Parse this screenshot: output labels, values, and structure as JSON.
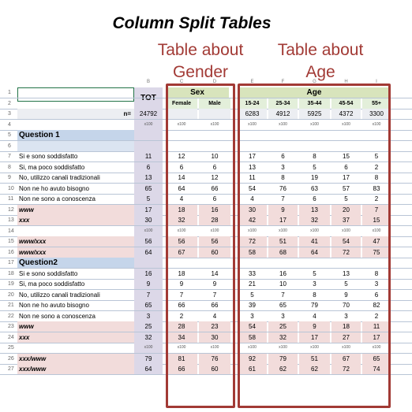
{
  "title": "Column Split Tables",
  "annotations": {
    "gender": "Table about Gender",
    "age": "Table about Age"
  },
  "colors": {
    "accent": "#a23a35",
    "question_bg": "#c5d5ea",
    "pink_bg": "#f2dcdb",
    "header_bg": "#e3efda"
  },
  "column_letters": [
    "B",
    "C",
    "D",
    "E",
    "F",
    "G",
    "H",
    "I"
  ],
  "header": {
    "tot": "TOT",
    "sex": "Sex",
    "age": "Age",
    "female": "Female",
    "male": "Male",
    "age_groups": [
      "15-24",
      "25-34",
      "35-44",
      "45-54",
      "55+"
    ]
  },
  "rows": [
    {
      "n": "1",
      "type": "hdr1"
    },
    {
      "n": "2",
      "type": "hdr2"
    },
    {
      "n": "3",
      "type": "base",
      "label": "n=",
      "values": [
        "24792",
        "",
        "",
        "6283",
        "4912",
        "5925",
        "4372",
        "3300"
      ]
    },
    {
      "n": "4",
      "type": "tiny",
      "values": [
        "x100",
        "x100",
        "x100",
        "x100",
        "x100",
        "x100",
        "x100",
        "x100"
      ]
    },
    {
      "n": "5",
      "type": "question",
      "label": "Question 1"
    },
    {
      "n": "6",
      "type": "blank"
    },
    {
      "n": "7",
      "type": "data",
      "label": "Si e sono soddisfatto",
      "values": [
        "11",
        "12",
        "10",
        "17",
        "6",
        "8",
        "15",
        "5"
      ]
    },
    {
      "n": "8",
      "type": "data",
      "label": "Si, ma poco soddisfatto",
      "values": [
        "6",
        "6",
        "6",
        "13",
        "3",
        "5",
        "6",
        "2"
      ]
    },
    {
      "n": "9",
      "type": "data",
      "label": "No, utilizzo canali tradizionali",
      "values": [
        "13",
        "14",
        "12",
        "11",
        "8",
        "19",
        "17",
        "8"
      ]
    },
    {
      "n": "10",
      "type": "data",
      "label": "Non ne ho avuto bisogno",
      "values": [
        "65",
        "64",
        "66",
        "54",
        "76",
        "63",
        "57",
        "83"
      ]
    },
    {
      "n": "11",
      "type": "data",
      "label": "Non ne sono a conoscenza",
      "values": [
        "5",
        "4",
        "6",
        "4",
        "7",
        "6",
        "5",
        "2"
      ]
    },
    {
      "n": "12",
      "type": "pink",
      "label": "www",
      "values": [
        "17",
        "18",
        "16",
        "30",
        "9",
        "13",
        "20",
        "7"
      ]
    },
    {
      "n": "13",
      "type": "pink",
      "label": "xxx",
      "values": [
        "30",
        "32",
        "28",
        "42",
        "17",
        "32",
        "37",
        "15"
      ]
    },
    {
      "n": "14",
      "type": "tiny",
      "values": [
        "x100",
        "x100",
        "x100",
        "x100",
        "x100",
        "x100",
        "x100",
        "x100"
      ]
    },
    {
      "n": "15",
      "type": "pink",
      "label": "www/xxx",
      "values": [
        "56",
        "56",
        "56",
        "72",
        "51",
        "41",
        "54",
        "47"
      ]
    },
    {
      "n": "16",
      "type": "pink",
      "label": "www/xxx",
      "values": [
        "64",
        "67",
        "60",
        "58",
        "68",
        "64",
        "72",
        "75"
      ]
    },
    {
      "n": "17",
      "type": "question",
      "label": "Question2"
    },
    {
      "n": "18",
      "type": "data",
      "label": "Si e sono soddisfatto",
      "values": [
        "16",
        "18",
        "14",
        "33",
        "16",
        "5",
        "13",
        "8"
      ]
    },
    {
      "n": "19",
      "type": "data",
      "label": "Si, ma poco soddisfatto",
      "values": [
        "9",
        "9",
        "9",
        "21",
        "10",
        "3",
        "5",
        "3"
      ]
    },
    {
      "n": "20",
      "type": "data",
      "label": "No, utilizzo canali tradizionali",
      "values": [
        "7",
        "7",
        "7",
        "5",
        "7",
        "8",
        "9",
        "6"
      ]
    },
    {
      "n": "21",
      "type": "data",
      "label": "Non ne ho avuto bisogno",
      "values": [
        "65",
        "66",
        "66",
        "39",
        "65",
        "79",
        "70",
        "82"
      ]
    },
    {
      "n": "22",
      "type": "data",
      "label": "Non ne sono a conoscenza",
      "values": [
        "3",
        "2",
        "4",
        "3",
        "3",
        "4",
        "3",
        "2"
      ]
    },
    {
      "n": "23",
      "type": "pink",
      "label": "www",
      "values": [
        "25",
        "28",
        "23",
        "54",
        "25",
        "9",
        "18",
        "11"
      ]
    },
    {
      "n": "24",
      "type": "pink",
      "label": "xxx",
      "values": [
        "32",
        "34",
        "30",
        "58",
        "32",
        "17",
        "27",
        "17"
      ]
    },
    {
      "n": "25",
      "type": "tiny",
      "values": [
        "x100",
        "x100",
        "x100",
        "x100",
        "x100",
        "x100",
        "x100",
        "x100"
      ]
    },
    {
      "n": "26",
      "type": "pink",
      "label": "xxx/www",
      "values": [
        "79",
        "81",
        "76",
        "92",
        "79",
        "51",
        "67",
        "65"
      ]
    },
    {
      "n": "27",
      "type": "pink",
      "label": "xxx/www",
      "values": [
        "64",
        "66",
        "60",
        "61",
        "62",
        "62",
        "72",
        "74"
      ]
    }
  ]
}
